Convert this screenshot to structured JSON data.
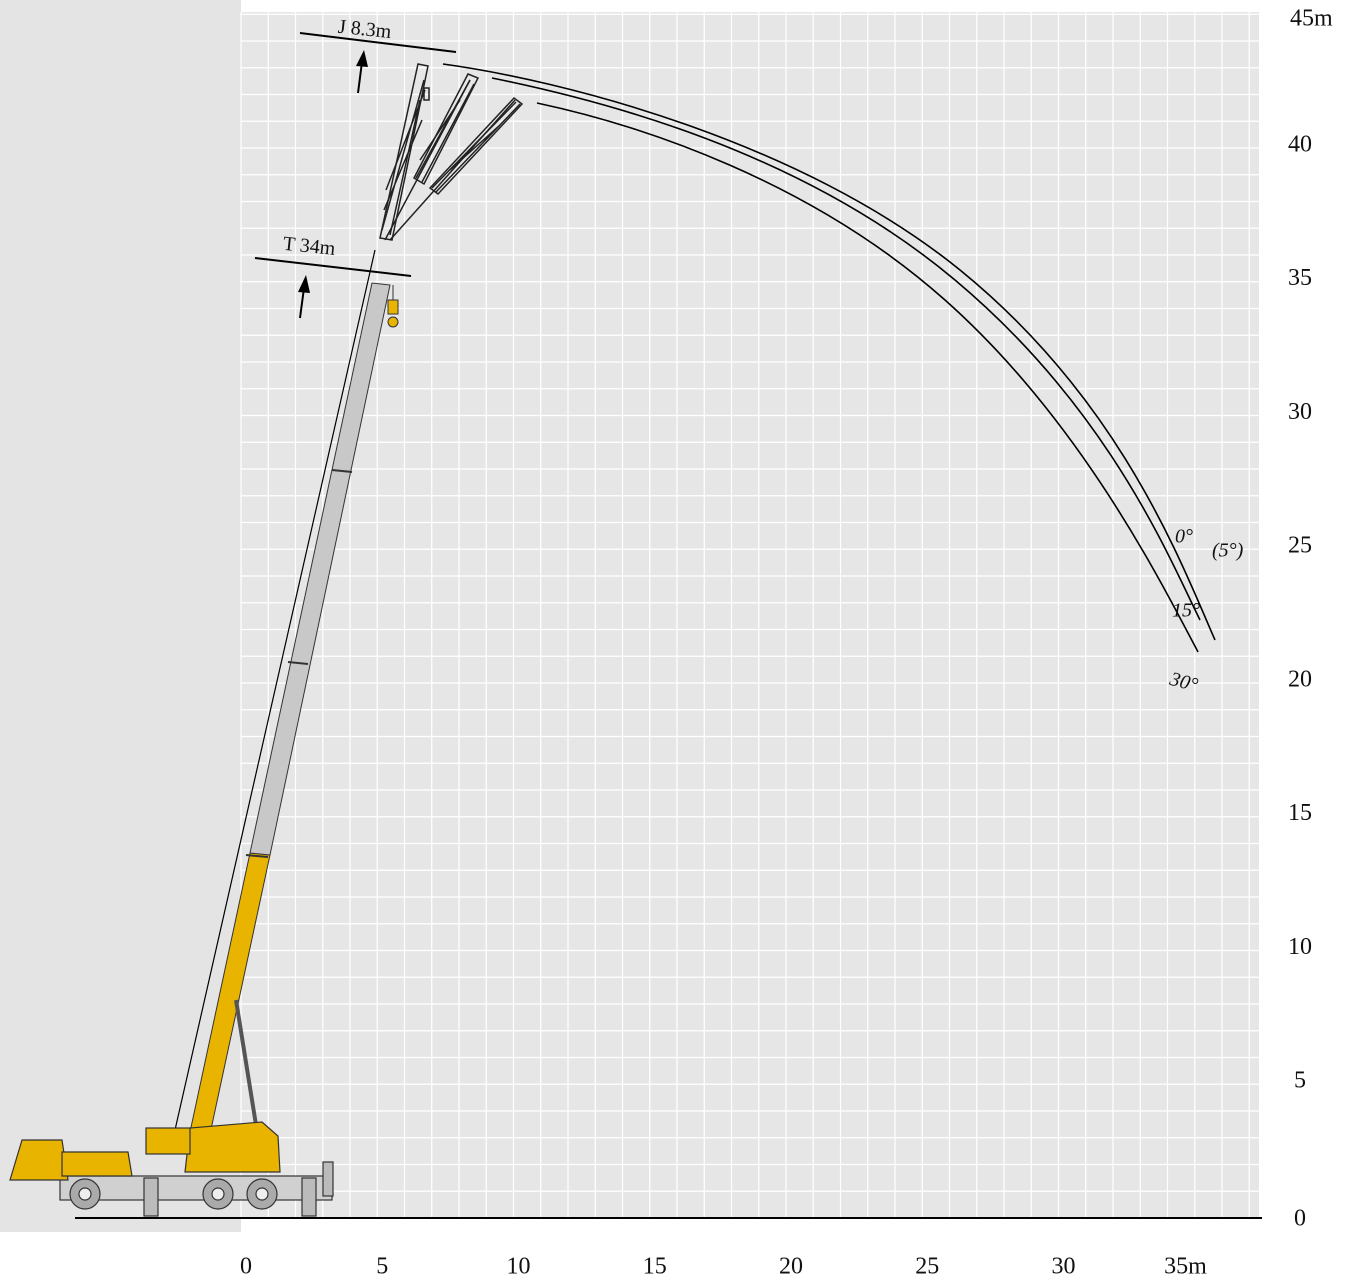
{
  "x_axis": {
    "labels": [
      "0",
      "5",
      "10",
      "15",
      "20",
      "25",
      "30",
      "35m"
    ]
  },
  "y_axis": {
    "labels": [
      "45m",
      "40",
      "35",
      "30",
      "25",
      "20",
      "15",
      "10",
      "5",
      "0"
    ]
  },
  "annotations": {
    "jib": "J 8.3m",
    "boom": "T 34m",
    "angle_0": "0°",
    "angle_5": "(5°)",
    "angle_15": "15°",
    "angle_30": "30°"
  }
}
